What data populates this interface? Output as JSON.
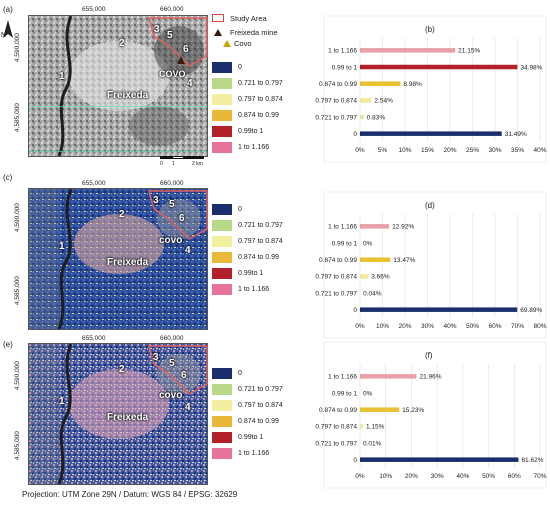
{
  "north_arrow": "N",
  "legend_top": {
    "study_area": "Study Area",
    "freixeda_mine": "Freixeda mine",
    "covo": "Covo"
  },
  "classes": [
    {
      "label": "0",
      "color": "#1a2e6b"
    },
    {
      "label": "0.721 to 0.797",
      "color": "#b8d98a"
    },
    {
      "label": "0.797 to 0.874",
      "color": "#f2f0a0"
    },
    {
      "label": "0.874 to 0.99",
      "color": "#e8b83a"
    },
    {
      "label": "0.99to 1",
      "color": "#b3202a"
    },
    {
      "label": "1 to 1.166",
      "color": "#e8739a"
    }
  ],
  "classes_alt": [
    {
      "label": "0",
      "color": "#1a2e6b"
    },
    {
      "label": "0.721 to 0.797",
      "color": "#b8d98a"
    },
    {
      "label": "0.797 to 0.874",
      "color": "#f2f0a0"
    },
    {
      "label": "0.874 to 0.99",
      "color": "#e8b83a"
    },
    {
      "label": "0.99to 1",
      "color": "#b3202a"
    },
    {
      "label": "1 to 1.166",
      "color": "#e8739a"
    }
  ],
  "maps": [
    {
      "panel": "(a)",
      "x_coords": [
        "655,000",
        "660,000"
      ],
      "y_coords": [
        "4,590,000",
        "4,585,000"
      ],
      "labels": {
        "n1": "1",
        "n2": "2",
        "n3": "3",
        "n4": "4",
        "n5": "5",
        "n6": "6",
        "covo": "COVO",
        "freixeda": "Freixeda"
      },
      "scale": [
        "0",
        "1",
        "2 km"
      ]
    },
    {
      "panel": "(c)",
      "x_coords": [
        "655,000",
        "660,000"
      ],
      "y_coords": [
        "4,590,000",
        "4,585,000"
      ],
      "labels": {
        "n1": "1",
        "n2": "2",
        "n3": "3",
        "n4": "4",
        "n5": "5",
        "n6": "6",
        "covo": "covo",
        "freixeda": "Freixeda"
      }
    },
    {
      "panel": "(e)",
      "x_coords": [
        "655,000",
        "660,000"
      ],
      "y_coords": [
        "4,590,000",
        "4,585,000"
      ],
      "labels": {
        "n1": "1",
        "n2": "2",
        "n3": "3",
        "n4": "4",
        "n5": "5",
        "n6": "6",
        "covo": "covo",
        "freixeda": "Freixeda"
      }
    }
  ],
  "chart_data": [
    {
      "type": "bar",
      "panel": "(b)",
      "orientation": "horizontal",
      "categories": [
        "1 to 1.166",
        "0.99 to 1",
        "0.874 to 0.99",
        "0.797 to 0.874",
        "0.721 to 0.797",
        "0"
      ],
      "values": [
        21.15,
        34.98,
        8.98,
        2.54,
        0.83,
        31.49
      ],
      "value_labels": [
        "21.15%",
        "34.98%",
        "8.98%",
        "2.54%",
        "0.83%",
        "31.49%"
      ],
      "colors": [
        "#e8a0a8",
        "#b3202a",
        "#e8c030",
        "#f2ec9a",
        "#dde6a8",
        "#1a2e6b"
      ],
      "xlim": [
        0,
        40
      ],
      "ticks": [
        "0%",
        "5%",
        "10%",
        "15%",
        "20%",
        "25%",
        "30%",
        "35%",
        "40%"
      ],
      "tick_values": [
        0,
        5,
        10,
        15,
        20,
        25,
        30,
        35,
        40
      ]
    },
    {
      "type": "bar",
      "panel": "(d)",
      "orientation": "horizontal",
      "categories": [
        "1 to 1.166",
        "0.99 to 1",
        "0.874 to 0.99",
        "0.797 to 0.874",
        "0.721 to 0.797",
        "0"
      ],
      "values": [
        12.92,
        0,
        13.47,
        3.66,
        0.04,
        69.89
      ],
      "value_labels": [
        "12.92%",
        "0%",
        "13.47%",
        "3.66%",
        "0.04%",
        "69.89%"
      ],
      "colors": [
        "#e8a0a8",
        "#b3202a",
        "#e8c030",
        "#f2ec9a",
        "#dde6a8",
        "#1a2e6b"
      ],
      "xlim": [
        0,
        80
      ],
      "ticks": [
        "0%",
        "10%",
        "20%",
        "30%",
        "40%",
        "50%",
        "60%",
        "70%",
        "80%"
      ],
      "tick_values": [
        0,
        10,
        20,
        30,
        40,
        50,
        60,
        70,
        80
      ]
    },
    {
      "type": "bar",
      "panel": "(f)",
      "orientation": "horizontal",
      "categories": [
        "1 to 1.166",
        "0.99 to 1",
        "0.874 to 0.99",
        "0.797 to 0.874",
        "0.721 to 0.797",
        "0"
      ],
      "values": [
        21.96,
        0,
        15.23,
        1.15,
        0.01,
        61.62
      ],
      "value_labels": [
        "21.96%",
        "0%",
        "15.23%",
        "1.15%",
        "0.01%",
        "61.62%"
      ],
      "colors": [
        "#e8a0a8",
        "#b3202a",
        "#e8c030",
        "#f2ec9a",
        "#dde6a8",
        "#1a2e6b"
      ],
      "xlim": [
        0,
        70
      ],
      "ticks": [
        "0%",
        "10%",
        "20%",
        "30%",
        "40%",
        "50%",
        "60%",
        "70%"
      ],
      "tick_values": [
        0,
        10,
        20,
        30,
        40,
        50,
        60,
        70
      ]
    }
  ],
  "footer": "Projection: UTM Zone 29N / Datum: WGS 84 / EPSG: 32629"
}
